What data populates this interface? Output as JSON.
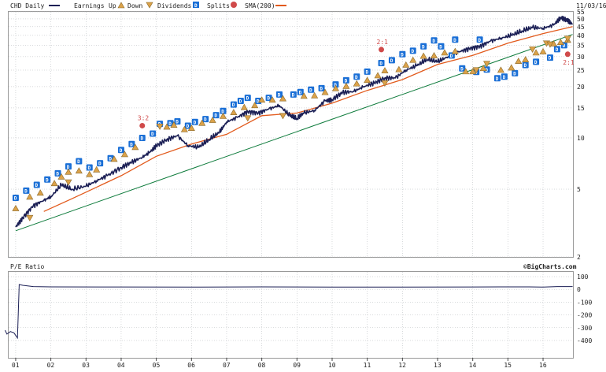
{
  "legend": {
    "symbol": "CHD",
    "interval": "Daily",
    "earnings_label": "Earnings",
    "up_label": "Up",
    "down_label": "Down",
    "dividends_label": "Dividends",
    "splits_label": "Splits",
    "sma_label": "SMA(200)"
  },
  "date_label": "11/03/16",
  "watermark": "©BigCharts.com",
  "pe_label": "P/E Ratio",
  "colors": {
    "price": "#1b1f55",
    "sma": "#e25a1c",
    "trend": "#0c7a3a",
    "grid": "#b0b4b8",
    "dividend": "#1a6fd6",
    "earnings_up": "#dba24a",
    "split": "#d04a4a"
  },
  "chart_data": [
    {
      "type": "line",
      "title": "CHD Daily",
      "y_scale": "log",
      "ylim": [
        2,
        55
      ],
      "xlim": [
        2001,
        2016.85
      ],
      "y_ticks": [
        2,
        5,
        10,
        15,
        20,
        25,
        30,
        35,
        40,
        45,
        50,
        55
      ],
      "x_ticks": [
        "01",
        "02",
        "03",
        "04",
        "05",
        "06",
        "07",
        "08",
        "09",
        "10",
        "11",
        "12",
        "13",
        "14",
        "15",
        "16"
      ],
      "series": [
        {
          "name": "CHD",
          "x": [
            2001.0,
            2001.2,
            2001.5,
            2001.8,
            2002.0,
            2002.3,
            2002.6,
            2003.0,
            2003.3,
            2003.6,
            2004.0,
            2004.3,
            2004.6,
            2004.8,
            2005.0,
            2005.3,
            2005.6,
            2005.9,
            2006.2,
            2006.5,
            2006.8,
            2007.0,
            2007.3,
            2007.6,
            2007.9,
            2008.2,
            2008.5,
            2008.8,
            2009.0,
            2009.2,
            2009.5,
            2009.8,
            2010.0,
            2010.3,
            2010.6,
            2010.9,
            2011.2,
            2011.5,
            2011.8,
            2012.1,
            2012.4,
            2012.7,
            2013.0,
            2013.3,
            2013.6,
            2013.9,
            2014.2,
            2014.5,
            2014.8,
            2015.1,
            2015.4,
            2015.7,
            2016.0,
            2016.3,
            2016.5,
            2016.7,
            2016.84
          ],
          "values": [
            3.0,
            3.4,
            4.0,
            4.3,
            4.5,
            5.3,
            5.0,
            5.2,
            5.6,
            6.0,
            6.7,
            7.2,
            7.7,
            8.2,
            9.0,
            9.8,
            10.3,
            9.0,
            8.8,
            9.8,
            10.8,
            12.4,
            13.2,
            14.3,
            14.0,
            14.8,
            15.5,
            13.5,
            13.0,
            14.0,
            14.5,
            16.5,
            16.8,
            18.5,
            18.7,
            20.0,
            21.0,
            22.5,
            22.5,
            25.0,
            26.5,
            29.0,
            28.0,
            30.0,
            32.0,
            33.5,
            34.5,
            37.0,
            38.5,
            40.0,
            42.5,
            44.5,
            44.0,
            46.0,
            51.0,
            49.0,
            46.5
          ]
        },
        {
          "name": "SMA(200)",
          "x": [
            2001.8,
            2002.5,
            2003.0,
            2004.0,
            2005.0,
            2006.0,
            2007.0,
            2008.0,
            2009.0,
            2010.0,
            2011.0,
            2012.0,
            2013.0,
            2014.0,
            2015.0,
            2016.0,
            2016.84
          ],
          "values": [
            3.7,
            4.3,
            4.8,
            6.0,
            7.8,
            9.2,
            10.5,
            13.5,
            14.0,
            16.0,
            19.0,
            22.0,
            27.0,
            30.5,
            36.0,
            41.0,
            45.0
          ]
        },
        {
          "name": "Trend",
          "x": [
            2001.0,
            2016.84
          ],
          "values": [
            2.85,
            40.5
          ]
        }
      ],
      "dividends": [
        {
          "x": 2001.0,
          "y": 4.45
        },
        {
          "x": 2001.3,
          "y": 4.9
        },
        {
          "x": 2001.6,
          "y": 5.3
        },
        {
          "x": 2001.9,
          "y": 5.7
        },
        {
          "x": 2002.2,
          "y": 6.2
        },
        {
          "x": 2002.5,
          "y": 6.8
        },
        {
          "x": 2002.8,
          "y": 7.3
        },
        {
          "x": 2003.1,
          "y": 6.7
        },
        {
          "x": 2003.4,
          "y": 7.1
        },
        {
          "x": 2003.7,
          "y": 7.6
        },
        {
          "x": 2004.0,
          "y": 8.5
        },
        {
          "x": 2004.3,
          "y": 9.2
        },
        {
          "x": 2004.6,
          "y": 10.0
        },
        {
          "x": 2004.9,
          "y": 10.6
        },
        {
          "x": 2005.1,
          "y": 12.1
        },
        {
          "x": 2005.4,
          "y": 12.2
        },
        {
          "x": 2005.6,
          "y": 12.5
        },
        {
          "x": 2005.9,
          "y": 11.8
        },
        {
          "x": 2006.1,
          "y": 12.4
        },
        {
          "x": 2006.4,
          "y": 12.9
        },
        {
          "x": 2006.7,
          "y": 13.6
        },
        {
          "x": 2006.9,
          "y": 14.4
        },
        {
          "x": 2007.2,
          "y": 15.7
        },
        {
          "x": 2007.4,
          "y": 16.5
        },
        {
          "x": 2007.6,
          "y": 17.2
        },
        {
          "x": 2007.9,
          "y": 16.5
        },
        {
          "x": 2008.2,
          "y": 17.2
        },
        {
          "x": 2008.5,
          "y": 18.0
        },
        {
          "x": 2008.9,
          "y": 18.0
        },
        {
          "x": 2009.1,
          "y": 18.6
        },
        {
          "x": 2009.4,
          "y": 19.2
        },
        {
          "x": 2009.7,
          "y": 19.6
        },
        {
          "x": 2010.1,
          "y": 20.6
        },
        {
          "x": 2010.4,
          "y": 21.8
        },
        {
          "x": 2010.7,
          "y": 22.9
        },
        {
          "x": 2011.0,
          "y": 24.5
        },
        {
          "x": 2011.4,
          "y": 27.5
        },
        {
          "x": 2011.7,
          "y": 28.6
        },
        {
          "x": 2012.0,
          "y": 31.0
        },
        {
          "x": 2012.3,
          "y": 32.5
        },
        {
          "x": 2012.6,
          "y": 34.5
        },
        {
          "x": 2012.9,
          "y": 37.4
        },
        {
          "x": 2013.1,
          "y": 34.5
        },
        {
          "x": 2013.4,
          "y": 30.5
        },
        {
          "x": 2013.5,
          "y": 37.8
        },
        {
          "x": 2013.7,
          "y": 25.6
        },
        {
          "x": 2014.1,
          "y": 24.4
        },
        {
          "x": 2014.2,
          "y": 37.8
        },
        {
          "x": 2014.4,
          "y": 25.2
        },
        {
          "x": 2014.7,
          "y": 22.4
        },
        {
          "x": 2014.9,
          "y": 22.9
        },
        {
          "x": 2015.2,
          "y": 24.0
        },
        {
          "x": 2015.5,
          "y": 26.8
        },
        {
          "x": 2015.8,
          "y": 28.0
        },
        {
          "x": 2016.2,
          "y": 29.6
        },
        {
          "x": 2016.4,
          "y": 33.2
        },
        {
          "x": 2016.6,
          "y": 35.0
        }
      ],
      "earnings_up": [
        {
          "x": 2001.0,
          "y": 3.85
        },
        {
          "x": 2001.4,
          "y": 4.5
        },
        {
          "x": 2001.7,
          "y": 4.75
        },
        {
          "x": 2002.1,
          "y": 5.4
        },
        {
          "x": 2002.3,
          "y": 5.9
        },
        {
          "x": 2002.5,
          "y": 6.3
        },
        {
          "x": 2002.8,
          "y": 6.4
        },
        {
          "x": 2003.1,
          "y": 6.1
        },
        {
          "x": 2003.3,
          "y": 6.5
        },
        {
          "x": 2003.8,
          "y": 7.5
        },
        {
          "x": 2004.1,
          "y": 8.0
        },
        {
          "x": 2004.4,
          "y": 8.8
        },
        {
          "x": 2005.3,
          "y": 11.6
        },
        {
          "x": 2005.5,
          "y": 11.9
        },
        {
          "x": 2005.8,
          "y": 11.2
        },
        {
          "x": 2006.0,
          "y": 11.4
        },
        {
          "x": 2006.3,
          "y": 12.2
        },
        {
          "x": 2006.6,
          "y": 12.7
        },
        {
          "x": 2006.9,
          "y": 13.4
        },
        {
          "x": 2007.2,
          "y": 14.1
        },
        {
          "x": 2007.5,
          "y": 15.1
        },
        {
          "x": 2007.8,
          "y": 15.5
        },
        {
          "x": 2008.0,
          "y": 16.7
        },
        {
          "x": 2008.3,
          "y": 16.7
        },
        {
          "x": 2008.6,
          "y": 17.0
        },
        {
          "x": 2009.2,
          "y": 17.6
        },
        {
          "x": 2009.5,
          "y": 17.7
        },
        {
          "x": 2009.8,
          "y": 18.5
        },
        {
          "x": 2010.1,
          "y": 19.5
        },
        {
          "x": 2010.4,
          "y": 20.1
        },
        {
          "x": 2010.7,
          "y": 20.8
        },
        {
          "x": 2011.0,
          "y": 21.8
        },
        {
          "x": 2011.3,
          "y": 23.2
        },
        {
          "x": 2011.5,
          "y": 24.8
        },
        {
          "x": 2011.9,
          "y": 25.2
        },
        {
          "x": 2012.1,
          "y": 26.8
        },
        {
          "x": 2012.3,
          "y": 28.6
        },
        {
          "x": 2012.6,
          "y": 30.2
        },
        {
          "x": 2012.9,
          "y": 30.4
        },
        {
          "x": 2013.2,
          "y": 31.6
        },
        {
          "x": 2013.5,
          "y": 32.2
        },
        {
          "x": 2013.8,
          "y": 24.5
        },
        {
          "x": 2014.0,
          "y": 24.5
        },
        {
          "x": 2014.3,
          "y": 25.6
        },
        {
          "x": 2014.8,
          "y": 25.0
        },
        {
          "x": 2015.1,
          "y": 25.8
        },
        {
          "x": 2015.3,
          "y": 28.2
        },
        {
          "x": 2015.5,
          "y": 28.8
        },
        {
          "x": 2015.8,
          "y": 31.6
        },
        {
          "x": 2016.0,
          "y": 32.1
        },
        {
          "x": 2016.3,
          "y": 35.7
        },
        {
          "x": 2016.5,
          "y": 36.4
        },
        {
          "x": 2016.7,
          "y": 37.5
        }
      ],
      "earnings_down": [
        {
          "x": 2001.4,
          "y": 3.4
        },
        {
          "x": 2002.5,
          "y": 5.5
        },
        {
          "x": 2005.1,
          "y": 11.7
        },
        {
          "x": 2007.6,
          "y": 13.1
        },
        {
          "x": 2008.6,
          "y": 13.5
        },
        {
          "x": 2011.5,
          "y": 21.0
        },
        {
          "x": 2014.1,
          "y": 25.1
        },
        {
          "x": 2014.4,
          "y": 27.3
        },
        {
          "x": 2015.7,
          "y": 33.2
        },
        {
          "x": 2016.1,
          "y": 36.0
        },
        {
          "x": 2016.2,
          "y": 35.5
        },
        {
          "x": 2016.7,
          "y": 38.4
        }
      ],
      "splits": [
        {
          "label": "3:2",
          "x": 2004.6,
          "y": 11.8
        },
        {
          "label": "2:1",
          "x": 2011.4,
          "y": 33.0
        },
        {
          "label": "2:1",
          "x": 2016.7,
          "y": 31.0
        }
      ]
    },
    {
      "type": "line",
      "title": "P/E Ratio",
      "ylim": [
        -400,
        100
      ],
      "y_ticks": [
        -400,
        -300,
        -200,
        -100,
        0,
        100
      ],
      "series": [
        {
          "name": "P/E Ratio",
          "x": [
            2000.7,
            2000.75,
            2000.85,
            2000.95,
            2001.05,
            2001.1,
            2001.2,
            2001.5,
            2002.0,
            2004.0,
            2006.0,
            2008.0,
            2010.0,
            2012.0,
            2014.0,
            2015.6,
            2016.0,
            2016.4,
            2016.84
          ],
          "values": [
            -320,
            -350,
            -330,
            -340,
            -380,
            38,
            32,
            22,
            20,
            19,
            18,
            20,
            18,
            18,
            19,
            20,
            18,
            22,
            22
          ]
        }
      ]
    }
  ]
}
